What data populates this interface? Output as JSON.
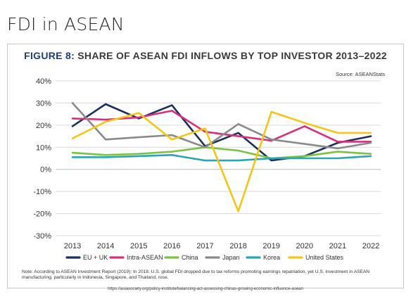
{
  "slide": {
    "title": "FDI in ASEAN"
  },
  "figure": {
    "label": "FIGURE 8:",
    "title": "SHARE OF ASEAN FDI INFLOWS BY TOP INVESTOR 2013–2022",
    "source": "Source: ASEANStats",
    "note": "Note: According to ASEAN Investment Report (2019): In 2018, U.S. global FDI dropped due to tax reforms promoting earnings repatriation, yet U.S. investment in ASEAN manufacturing, particularly in Indonesia, Singapore, and Thailand, rose.",
    "url": "https://asiasociety.org/policy-institute/balancing-act-assessing-chinas-growing-economic-influence-asean"
  },
  "chart_data": {
    "type": "line",
    "categories": [
      "2013",
      "2014",
      "2015",
      "2016",
      "2017",
      "2018",
      "2019",
      "2020",
      "2021",
      "2022"
    ],
    "yticks": [
      "40%",
      "30%",
      "20%",
      "10%",
      "0%",
      "-10%",
      "-20%",
      "-30%"
    ],
    "ylim": [
      -30,
      40
    ],
    "grid": "horizontal",
    "legend_position": "bottom",
    "series": [
      {
        "name": "EU + UK",
        "color": "#1b2f5e",
        "values": [
          19.5,
          29.5,
          23,
          29,
          10.5,
          16.5,
          4,
          6,
          12,
          15
        ]
      },
      {
        "name": "Intra-ASEAN",
        "color": "#d6307a",
        "values": [
          23,
          22.5,
          23.5,
          26.5,
          17,
          15,
          13,
          19.5,
          12.5,
          12.5
        ]
      },
      {
        "name": "China",
        "color": "#7cc243",
        "values": [
          7.5,
          6.5,
          7,
          8,
          10,
          8.5,
          5,
          6,
          8,
          7
        ]
      },
      {
        "name": "Japan",
        "color": "#8a8a8a",
        "values": [
          30,
          13.5,
          14.5,
          15.5,
          10,
          20.5,
          13.5,
          11.5,
          9.5,
          12
        ]
      },
      {
        "name": "Korea",
        "color": "#2aa5b8",
        "values": [
          5.5,
          5.5,
          6,
          6.5,
          4,
          4,
          5,
          5,
          5,
          6
        ]
      },
      {
        "name": "United States",
        "color": "#f5c518",
        "values": [
          14,
          21.5,
          25.5,
          13.5,
          18.5,
          -19,
          26,
          21,
          16.5,
          16.5
        ]
      }
    ]
  }
}
